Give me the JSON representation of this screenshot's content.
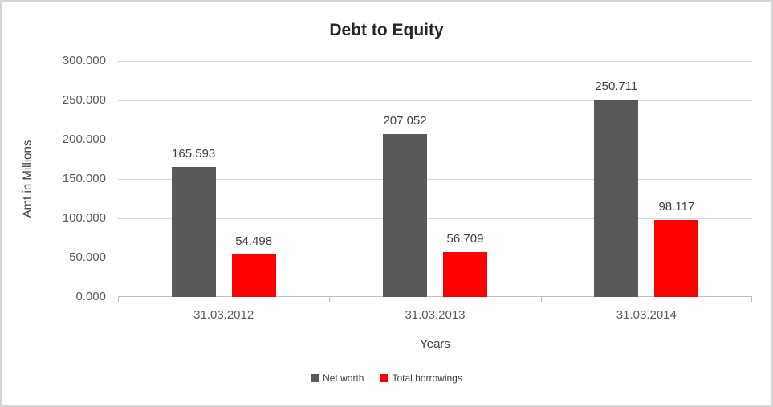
{
  "chart_data": {
    "type": "bar",
    "title": "Debt to Equity",
    "xlabel": "Years",
    "ylabel": "Amt in Millions",
    "categories": [
      "31.03.2012",
      "31.03.2013",
      "31.03.2014"
    ],
    "series": [
      {
        "name": "Net worth",
        "color": "#595959",
        "values": [
          165.593,
          207.052,
          250.711
        ],
        "labels": [
          "165.593",
          "207.052",
          "250.711"
        ]
      },
      {
        "name": "Total borrowings",
        "color": "#ff0000",
        "values": [
          54.498,
          56.709,
          98.117
        ],
        "labels": [
          "54.498",
          "56.709",
          "98.117"
        ]
      }
    ],
    "ylim": [
      0,
      300
    ],
    "yticks": [
      {
        "v": 0,
        "label": "0.000"
      },
      {
        "v": 50,
        "label": "50.000"
      },
      {
        "v": 100,
        "label": "100.000"
      },
      {
        "v": 150,
        "label": "150.000"
      },
      {
        "v": 200,
        "label": "200.000"
      },
      {
        "v": 250,
        "label": "250.000"
      },
      {
        "v": 300,
        "label": "300.000"
      }
    ],
    "grid": true,
    "legend_position": "bottom"
  }
}
